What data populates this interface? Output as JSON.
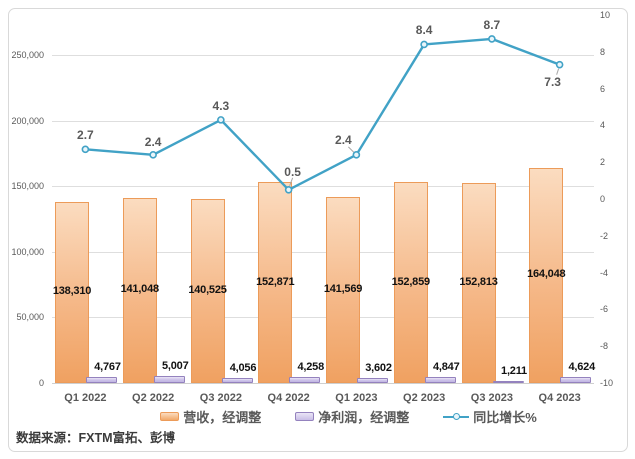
{
  "source_note": "数据来源：FXTM富拓、彭博",
  "colors": {
    "revenue_fill_top": "#FBDCC0",
    "revenue_fill_bottom": "#F0A161",
    "revenue_border": "#EC9B59",
    "profit_fill": "#CDC3E9",
    "profit_border": "#9482BE",
    "growth_line": "#41A2C6",
    "grid": "#DEDEDE",
    "axis_text": "#595959",
    "value_text": "#111111",
    "frame_border": "#D9D9D9"
  },
  "chart_data": {
    "type": "combo",
    "categories": [
      "Q1 2022",
      "Q2 2022",
      "Q3 2022",
      "Q4 2022",
      "Q1 2023",
      "Q2 2023",
      "Q3 2023",
      "Q4 2023"
    ],
    "series": [
      {
        "name": "营收，经调整",
        "type": "bar",
        "axis": "left",
        "values": [
          138310,
          141048,
          140525,
          152871,
          141569,
          152859,
          152813,
          164048
        ],
        "labels": [
          "138,310",
          "141,048",
          "140,525",
          "152,871",
          "141,569",
          "152,859",
          "152,813",
          "164,048"
        ]
      },
      {
        "name": "净利润，经调整",
        "type": "bar",
        "axis": "left",
        "values": [
          4767,
          5007,
          4056,
          4258,
          3602,
          4847,
          1211,
          4624
        ],
        "labels": [
          "4,767",
          "5,007",
          "4,056",
          "4,258",
          "3,602",
          "4,847",
          "1,211",
          "4,624"
        ]
      },
      {
        "name": "同比增长%",
        "type": "line",
        "axis": "right",
        "values": [
          2.7,
          2.4,
          4.3,
          0.5,
          2.4,
          8.4,
          8.7,
          7.3
        ],
        "labels": [
          "2.7",
          "2.4",
          "4.3",
          "0.5",
          "2.4",
          "8.4",
          "8.7",
          "7.3"
        ],
        "label_positions": [
          "above",
          "above",
          "above",
          "above-leader",
          "above-left-leader",
          "above",
          "above",
          "below-leader"
        ]
      }
    ],
    "left_axis": {
      "min": 0,
      "max": 250000,
      "step": 50000,
      "tick_labels": [
        "250,000",
        "200,000",
        "150,000",
        "100,000",
        "50,000",
        "0"
      ]
    },
    "right_axis": {
      "min": -10,
      "max": 10,
      "step": 2,
      "tick_labels": [
        "10",
        "8",
        "6",
        "4",
        "2",
        "0",
        "-2",
        "-4",
        "-6",
        "-8",
        "-10"
      ]
    },
    "grid": true,
    "legend_position": "bottom"
  }
}
